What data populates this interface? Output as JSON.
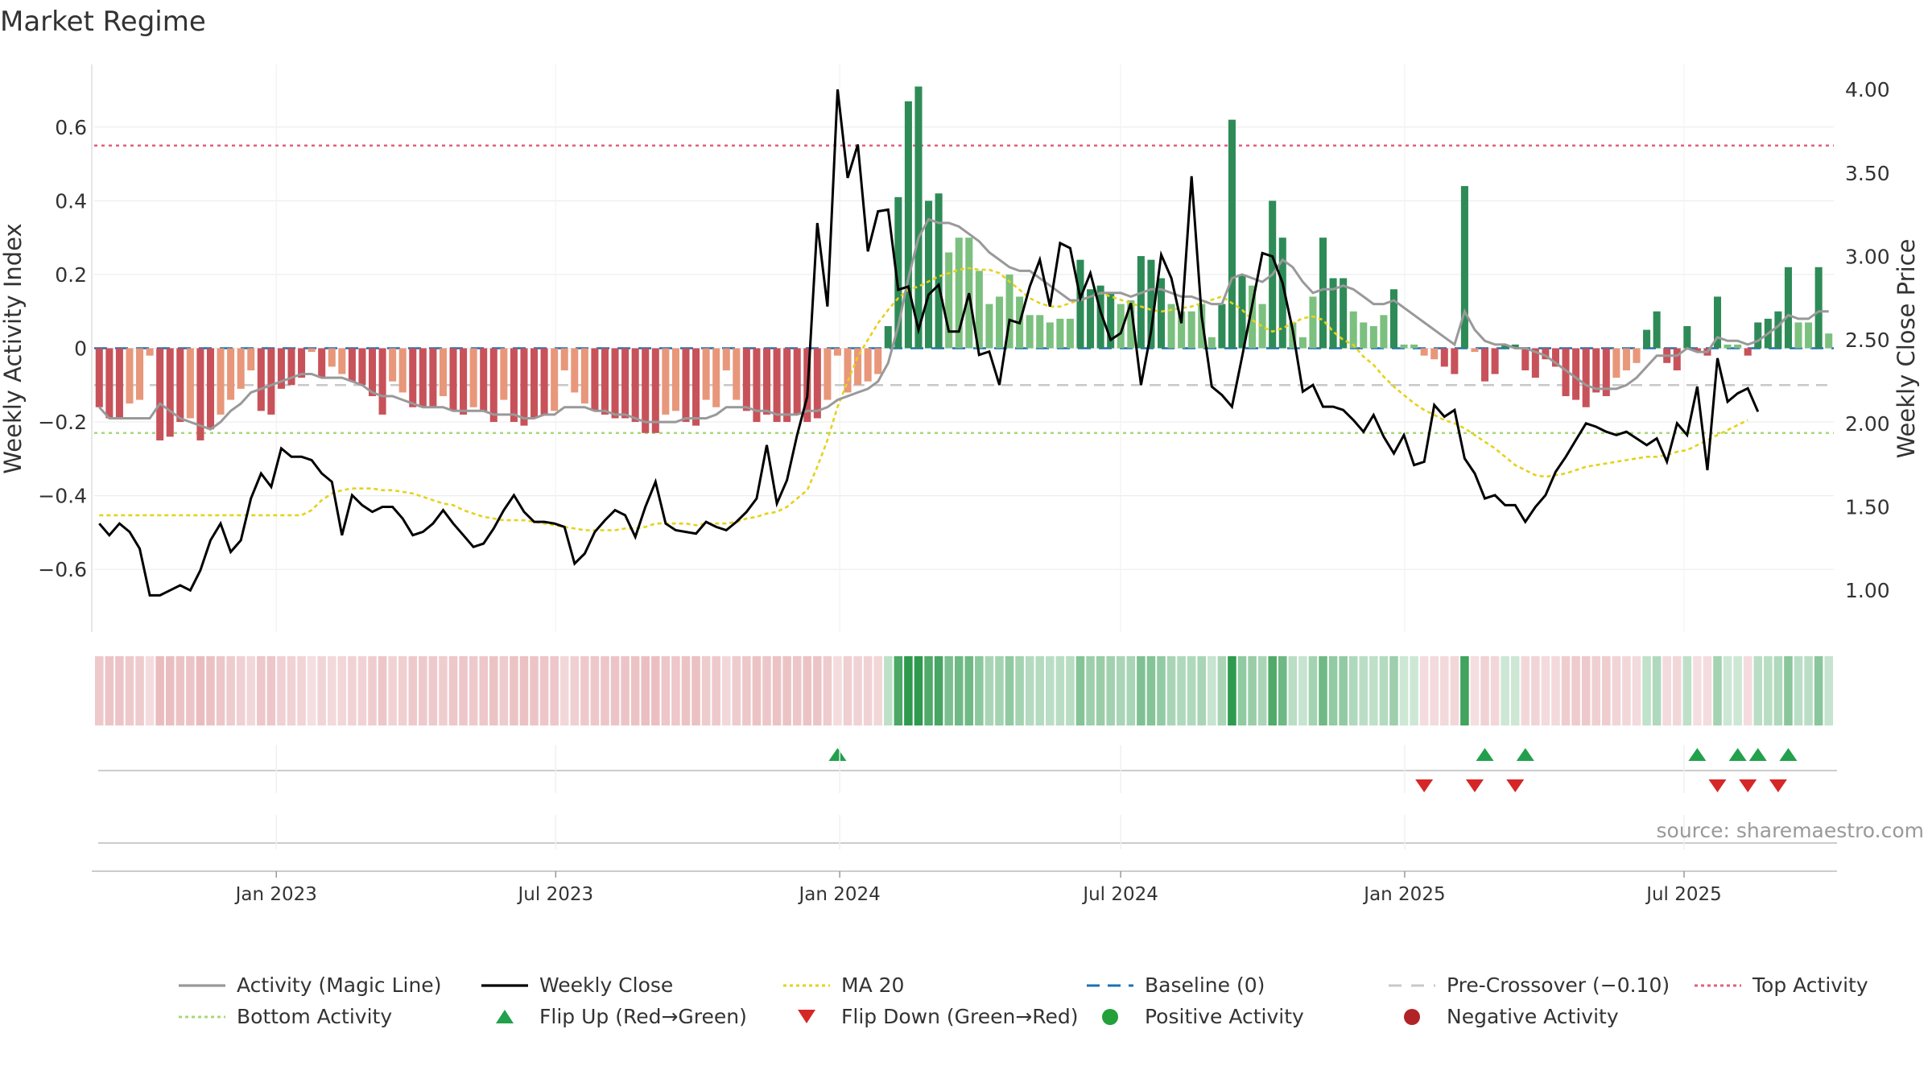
{
  "chart_data": {
    "type": "bar",
    "title": "Market Regime",
    "ylabel": "Weekly Activity Index",
    "y2label": "Weekly Close Price",
    "source": "source: sharemaestro.com",
    "ylim": [
      -0.77,
      0.77
    ],
    "y2lim": [
      0.75,
      4.15
    ],
    "yticks": [
      "0.6",
      "0.4",
      "0.2",
      "0",
      "−0.2",
      "−0.4",
      "−0.6"
    ],
    "yticks_values": [
      0.6,
      0.4,
      0.2,
      0,
      -0.2,
      -0.4,
      -0.6
    ],
    "y2ticks": [
      "4.00",
      "3.50",
      "3.00",
      "2.50",
      "2.00",
      "1.50",
      "1.00"
    ],
    "y2ticks_values": [
      4.0,
      3.5,
      3.0,
      2.5,
      2.0,
      1.5,
      1.0
    ],
    "x_start": "2022-09-05",
    "x_end": "2025-10-06",
    "xticks": [
      {
        "label": "Jan 2023",
        "date": "2023-01-01"
      },
      {
        "label": "Jul 2023",
        "date": "2023-07-01"
      },
      {
        "label": "Jan 2024",
        "date": "2024-01-01"
      },
      {
        "label": "Jul 2024",
        "date": "2024-07-01"
      },
      {
        "label": "Jan 2025",
        "date": "2025-01-01"
      },
      {
        "label": "Jul 2025",
        "date": "2025-07-01"
      }
    ],
    "reference_lines": {
      "baseline": 0,
      "pre_crossover": -0.1,
      "top_activity": 0.55,
      "bottom_activity": -0.23
    },
    "weekly_activity": [
      -0.16,
      -0.19,
      -0.19,
      -0.15,
      -0.14,
      -0.02,
      -0.25,
      -0.24,
      -0.2,
      -0.19,
      -0.25,
      -0.22,
      -0.18,
      -0.14,
      -0.11,
      -0.06,
      -0.17,
      -0.18,
      -0.11,
      -0.1,
      -0.08,
      -0.01,
      -0.08,
      -0.05,
      -0.07,
      -0.09,
      -0.1,
      -0.13,
      -0.18,
      -0.09,
      -0.12,
      -0.16,
      -0.16,
      -0.16,
      -0.13,
      -0.17,
      -0.18,
      -0.16,
      -0.17,
      -0.2,
      -0.14,
      -0.2,
      -0.21,
      -0.19,
      -0.18,
      -0.17,
      -0.06,
      -0.12,
      -0.15,
      -0.17,
      -0.18,
      -0.19,
      -0.19,
      -0.2,
      -0.23,
      -0.23,
      -0.18,
      -0.17,
      -0.2,
      -0.21,
      -0.14,
      -0.16,
      -0.06,
      -0.14,
      -0.17,
      -0.2,
      -0.18,
      -0.2,
      -0.2,
      -0.18,
      -0.2,
      -0.19,
      -0.14,
      -0.02,
      -0.12,
      -0.1,
      -0.09,
      -0.07,
      0.06,
      0.41,
      0.67,
      0.71,
      0.4,
      0.42,
      0.26,
      0.3,
      0.3,
      0.21,
      0.12,
      0.14,
      0.2,
      0.14,
      0.09,
      0.09,
      0.07,
      0.08,
      0.08,
      0.24,
      0.16,
      0.17,
      0.15,
      0.12,
      0.13,
      0.25,
      0.24,
      0.19,
      0.12,
      0.1,
      0.1,
      0.12,
      0.03,
      0.12,
      0.62,
      0.2,
      0.17,
      0.12,
      0.4,
      0.3,
      0.07,
      0.03,
      0.14,
      0.3,
      0.19,
      0.19,
      0.1,
      0.07,
      0.06,
      0.09,
      0.16,
      0.01,
      0.01,
      -0.02,
      -0.03,
      -0.05,
      -0.07,
      0.44,
      -0.01,
      -0.09,
      -0.07,
      0.01,
      0.01,
      -0.06,
      -0.08,
      -0.03,
      -0.05,
      -0.13,
      -0.14,
      -0.16,
      -0.12,
      -0.13,
      -0.08,
      -0.06,
      -0.04,
      0.05,
      0.1,
      -0.04,
      -0.06,
      0.06,
      -0.01,
      -0.02,
      0.14,
      0.01,
      0.01,
      -0.02,
      0.07,
      0.08,
      0.1,
      0.22,
      0.07,
      0.07,
      0.22,
      0.04
    ],
    "magic_line": [
      -0.16,
      -0.19,
      -0.19,
      -0.19,
      -0.19,
      -0.19,
      -0.15,
      -0.17,
      -0.19,
      -0.2,
      -0.21,
      -0.22,
      -0.2,
      -0.17,
      -0.15,
      -0.12,
      -0.11,
      -0.1,
      -0.09,
      -0.08,
      -0.07,
      -0.07,
      -0.08,
      -0.08,
      -0.08,
      -0.09,
      -0.1,
      -0.12,
      -0.13,
      -0.13,
      -0.14,
      -0.15,
      -0.16,
      -0.16,
      -0.16,
      -0.17,
      -0.17,
      -0.17,
      -0.17,
      -0.18,
      -0.18,
      -0.18,
      -0.19,
      -0.19,
      -0.18,
      -0.18,
      -0.16,
      -0.16,
      -0.16,
      -0.17,
      -0.17,
      -0.18,
      -0.18,
      -0.19,
      -0.2,
      -0.2,
      -0.2,
      -0.2,
      -0.19,
      -0.19,
      -0.19,
      -0.18,
      -0.16,
      -0.16,
      -0.16,
      -0.17,
      -0.17,
      -0.18,
      -0.18,
      -0.18,
      -0.17,
      -0.17,
      -0.16,
      -0.14,
      -0.13,
      -0.12,
      -0.11,
      -0.09,
      -0.04,
      0.06,
      0.19,
      0.3,
      0.35,
      0.34,
      0.34,
      0.33,
      0.31,
      0.29,
      0.26,
      0.24,
      0.22,
      0.21,
      0.21,
      0.19,
      0.17,
      0.15,
      0.13,
      0.13,
      0.14,
      0.15,
      0.15,
      0.15,
      0.14,
      0.15,
      0.16,
      0.16,
      0.15,
      0.14,
      0.14,
      0.13,
      0.12,
      0.12,
      0.19,
      0.2,
      0.19,
      0.18,
      0.2,
      0.24,
      0.22,
      0.18,
      0.15,
      0.16,
      0.16,
      0.17,
      0.16,
      0.14,
      0.12,
      0.12,
      0.13,
      0.11,
      0.09,
      0.07,
      0.05,
      0.03,
      0.01,
      0.1,
      0.05,
      0.02,
      0.01,
      0.01,
      0,
      0,
      -0.01,
      -0.02,
      -0.04,
      -0.06,
      -0.08,
      -0.1,
      -0.11,
      -0.11,
      -0.11,
      -0.1,
      -0.08,
      -0.05,
      -0.02,
      -0.02,
      -0.02,
      0,
      -0.01,
      -0.01,
      0.03,
      0.02,
      0.02,
      0.01,
      0.02,
      0.04,
      0.06,
      0.09,
      0.08,
      0.08,
      0.1,
      0.1
    ],
    "weekly_close": [
      1.4,
      1.33,
      1.4,
      1.35,
      1.25,
      0.97,
      0.97,
      1.0,
      1.03,
      1.0,
      1.12,
      1.3,
      1.4,
      1.23,
      1.3,
      1.55,
      1.7,
      1.62,
      1.85,
      1.8,
      1.8,
      1.78,
      1.7,
      1.65,
      1.33,
      1.57,
      1.51,
      1.47,
      1.5,
      1.5,
      1.43,
      1.33,
      1.35,
      1.4,
      1.48,
      1.4,
      1.33,
      1.26,
      1.28,
      1.37,
      1.48,
      1.57,
      1.47,
      1.41,
      1.41,
      1.4,
      1.38,
      1.16,
      1.22,
      1.35,
      1.42,
      1.48,
      1.45,
      1.32,
      1.5,
      1.65,
      1.4,
      1.36,
      1.35,
      1.34,
      1.41,
      1.38,
      1.36,
      1.41,
      1.47,
      1.55,
      1.87,
      1.52,
      1.66,
      1.93,
      2.16,
      3.2,
      2.7,
      4.0,
      3.47,
      3.67,
      3.03,
      3.27,
      3.28,
      2.8,
      2.82,
      2.56,
      2.77,
      2.83,
      2.55,
      2.55,
      2.78,
      2.41,
      2.43,
      2.23,
      2.62,
      2.6,
      2.82,
      2.98,
      2.7,
      3.08,
      3.05,
      2.75,
      2.9,
      2.67,
      2.5,
      2.54,
      2.72,
      2.23,
      2.55,
      3.01,
      2.87,
      2.6,
      3.48,
      2.64,
      2.22,
      2.17,
      2.1,
      2.4,
      2.71,
      3.02,
      3.0,
      2.84,
      2.56,
      2.19,
      2.23,
      2.1,
      2.1,
      2.08,
      2.02,
      1.95,
      2.05,
      1.92,
      1.82,
      1.93,
      1.75,
      1.77,
      2.11,
      2.04,
      2.08,
      1.79,
      1.7,
      1.55,
      1.57,
      1.51,
      1.51,
      1.41,
      1.5,
      1.57,
      1.71,
      1.8,
      1.9,
      2.0,
      1.98,
      1.95,
      1.93,
      1.95,
      1.91,
      1.87,
      1.91,
      1.77,
      2.0,
      1.93,
      2.22,
      1.72,
      2.39,
      2.13,
      2.18,
      2.21,
      2.07
    ],
    "ma20": [
      1.45,
      1.45,
      1.45,
      1.45,
      1.45,
      1.45,
      1.45,
      1.45,
      1.45,
      1.45,
      1.45,
      1.45,
      1.45,
      1.45,
      1.45,
      1.45,
      1.45,
      1.45,
      1.45,
      1.45,
      1.45,
      1.48,
      1.54,
      1.58,
      1.6,
      1.61,
      1.61,
      1.61,
      1.6,
      1.6,
      1.59,
      1.58,
      1.56,
      1.54,
      1.52,
      1.51,
      1.48,
      1.46,
      1.44,
      1.43,
      1.42,
      1.42,
      1.42,
      1.41,
      1.4,
      1.39,
      1.38,
      1.37,
      1.36,
      1.36,
      1.36,
      1.36,
      1.37,
      1.37,
      1.38,
      1.4,
      1.4,
      1.4,
      1.4,
      1.39,
      1.4,
      1.4,
      1.4,
      1.41,
      1.43,
      1.44,
      1.46,
      1.47,
      1.5,
      1.55,
      1.6,
      1.74,
      1.9,
      2.1,
      2.25,
      2.4,
      2.5,
      2.6,
      2.68,
      2.75,
      2.8,
      2.82,
      2.85,
      2.88,
      2.9,
      2.92,
      2.93,
      2.92,
      2.92,
      2.9,
      2.85,
      2.8,
      2.75,
      2.72,
      2.7,
      2.7,
      2.72,
      2.74,
      2.76,
      2.78,
      2.76,
      2.74,
      2.72,
      2.7,
      2.68,
      2.67,
      2.68,
      2.69,
      2.7,
      2.72,
      2.74,
      2.76,
      2.72,
      2.68,
      2.62,
      2.58,
      2.55,
      2.57,
      2.6,
      2.63,
      2.64,
      2.62,
      2.55,
      2.5,
      2.47,
      2.4,
      2.35,
      2.28,
      2.22,
      2.17,
      2.12,
      2.08,
      2.05,
      2.02,
      2.0,
      1.97,
      1.93,
      1.89,
      1.85,
      1.8,
      1.75,
      1.72,
      1.69,
      1.68,
      1.69,
      1.7,
      1.72,
      1.74,
      1.75,
      1.76,
      1.77,
      1.78,
      1.79,
      1.8,
      1.8,
      1.81,
      1.83,
      1.84,
      1.87,
      1.9,
      1.93,
      1.96,
      1.99,
      2.02
    ],
    "flip_up": [
      73,
      137,
      141,
      158,
      162,
      164,
      167
    ],
    "flip_down": [
      131,
      136,
      140,
      160,
      163,
      166
    ]
  },
  "legend": [
    {
      "label": "Activity (Magic Line)",
      "symbol": "line",
      "color": "#999999"
    },
    {
      "label": "Weekly Close",
      "symbol": "line",
      "color": "#000000"
    },
    {
      "label": "MA 20",
      "symbol": "dotted",
      "color": "#e5d21b"
    },
    {
      "label": "Baseline (0)",
      "symbol": "dashed",
      "color": "#1f6fb2"
    },
    {
      "label": "Pre-Crossover (−0.10)",
      "symbol": "dashed-light",
      "color": "#c8c8c8"
    },
    {
      "label": "Top Activity",
      "symbol": "dotted",
      "color": "#e0607e"
    },
    {
      "label": "Bottom Activity",
      "symbol": "dotted",
      "color": "#a8d878"
    },
    {
      "label": "Flip Up (Red→Green)",
      "symbol": "triangle-up",
      "color": "#22a04b"
    },
    {
      "label": "Flip Down (Green→Red)",
      "symbol": "triangle-down",
      "color": "#d62728"
    },
    {
      "label": "Positive Activity",
      "symbol": "circle",
      "color": "#23a03a"
    },
    {
      "label": "Negative Activity",
      "symbol": "circle",
      "color": "#b02428"
    }
  ],
  "colors": {
    "strong_green": "#2e8b57",
    "light_green": "#7cc07f",
    "strong_red": "#c8525a",
    "light_red": "#e8977a"
  }
}
